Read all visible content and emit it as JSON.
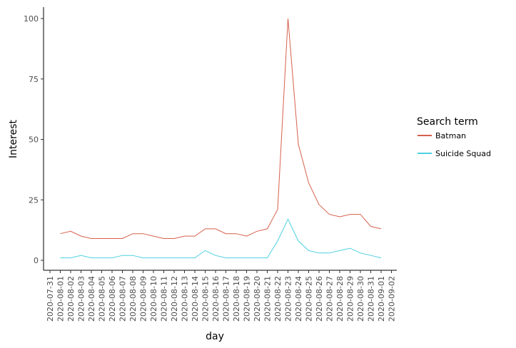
{
  "chart_data": {
    "type": "line",
    "xlabel": "day",
    "ylabel": "Interest",
    "ylim": [
      0,
      100
    ],
    "y_ticks": [
      0,
      25,
      50,
      75,
      100
    ],
    "x_ticks": [
      "2020-07-31",
      "2020-08-01",
      "2020-08-02",
      "2020-08-03",
      "2020-08-04",
      "2020-08-05",
      "2020-08-06",
      "2020-08-07",
      "2020-08-08",
      "2020-08-09",
      "2020-08-10",
      "2020-08-11",
      "2020-08-12",
      "2020-08-13",
      "2020-08-14",
      "2020-08-15",
      "2020-08-16",
      "2020-08-17",
      "2020-08-18",
      "2020-08-19",
      "2020-08-20",
      "2020-08-21",
      "2020-08-22",
      "2020-08-23",
      "2020-08-24",
      "2020-08-25",
      "2020-08-26",
      "2020-08-27",
      "2020-08-28",
      "2020-08-29",
      "2020-08-30",
      "2020-08-31",
      "2020-09-01",
      "2020-09-02"
    ],
    "x": [
      "2020-08-01",
      "2020-08-02",
      "2020-08-03",
      "2020-08-04",
      "2020-08-05",
      "2020-08-06",
      "2020-08-07",
      "2020-08-08",
      "2020-08-09",
      "2020-08-10",
      "2020-08-11",
      "2020-08-12",
      "2020-08-13",
      "2020-08-14",
      "2020-08-15",
      "2020-08-16",
      "2020-08-17",
      "2020-08-18",
      "2020-08-19",
      "2020-08-20",
      "2020-08-21",
      "2020-08-22",
      "2020-08-23",
      "2020-08-24",
      "2020-08-25",
      "2020-08-26",
      "2020-08-27",
      "2020-08-28",
      "2020-08-29",
      "2020-08-30",
      "2020-08-31",
      "2020-09-01"
    ],
    "series": [
      {
        "name": "Batman",
        "color": "#d6604d",
        "values": [
          11,
          12,
          10,
          9,
          9,
          9,
          9,
          11,
          11,
          10,
          9,
          9,
          10,
          10,
          13,
          13,
          11,
          11,
          10,
          12,
          13,
          21,
          100,
          48,
          32,
          23,
          19,
          18,
          19,
          19,
          14,
          13
        ]
      },
      {
        "name": "Suicide Squad",
        "color": "#4dd0e1",
        "values": [
          1,
          1,
          2,
          1,
          1,
          1,
          2,
          2,
          1,
          1,
          1,
          1,
          1,
          1,
          4,
          2,
          1,
          1,
          1,
          1,
          1,
          8,
          17,
          8,
          4,
          3,
          3,
          4,
          5,
          3,
          2,
          1
        ]
      }
    ],
    "legend": {
      "title": "Search term",
      "placement": "right"
    },
    "grid": false
  }
}
